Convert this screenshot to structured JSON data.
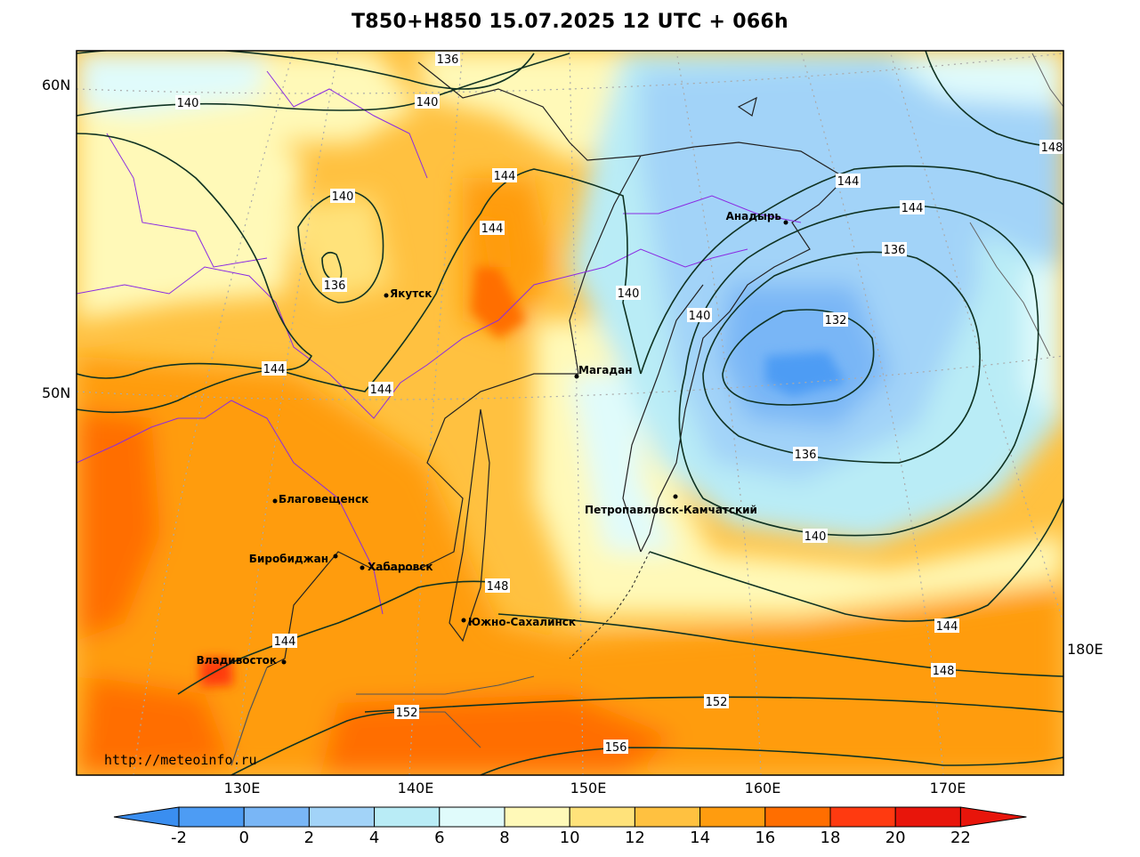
{
  "title": "T850+H850 15.07.2025 12 UTC + 066h",
  "watermark": "http://meteoinfo.ru",
  "lat_labels": [
    "60N",
    "50N"
  ],
  "lon_labels": [
    "130E",
    "140E",
    "150E",
    "160E",
    "170E"
  ],
  "side_lon_label": "180E",
  "colorbar": {
    "ticks": [
      "-2",
      "0",
      "2",
      "4",
      "6",
      "8",
      "10",
      "12",
      "14",
      "16",
      "18",
      "20",
      "22"
    ],
    "colors": [
      "#3a8ef0",
      "#4d9cf4",
      "#79b6f6",
      "#a2d3f8",
      "#b9ecf6",
      "#e0fbfb",
      "#fff9b8",
      "#ffe27a",
      "#ffc140",
      "#ff9c0f",
      "#ff6e00",
      "#ff3a10",
      "#e8150b"
    ]
  },
  "cities": [
    {
      "name": "Якутск"
    },
    {
      "name": "Анадырь"
    },
    {
      "name": "Магадан"
    },
    {
      "name": "Благовещенск"
    },
    {
      "name": "Биробиджан"
    },
    {
      "name": "Хабаровск"
    },
    {
      "name": "Петропавловск-Камчатский"
    },
    {
      "name": "Южно-Сахалинск"
    },
    {
      "name": "Владивосток"
    }
  ],
  "contour_labels": [
    "136",
    "140",
    "140",
    "140",
    "136",
    "144",
    "144",
    "144",
    "144",
    "144",
    "144",
    "148",
    "144",
    "140",
    "136",
    "132",
    "140",
    "136",
    "140",
    "144",
    "148",
    "148",
    "144",
    "152",
    "152",
    "156"
  ]
}
